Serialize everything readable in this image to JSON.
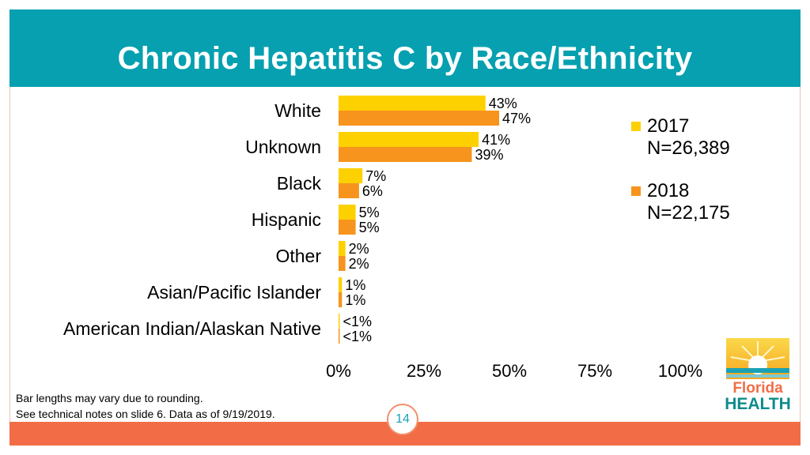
{
  "header": {
    "title": "Chronic Hepatitis C by Race/Ethnicity"
  },
  "colors": {
    "teal": "#06a0b0",
    "series_2017": "#fdd100",
    "series_2018": "#f7941d",
    "footer": "#f26d45"
  },
  "chart_data": {
    "type": "bar",
    "orientation": "horizontal",
    "categories": [
      "White",
      "Unknown",
      "Black",
      "Hispanic",
      "Other",
      "Asian/Pacific Islander",
      "American Indian/Alaskan Native"
    ],
    "series": [
      {
        "name": "2017",
        "n_label": "N=26,389",
        "values": [
          43,
          41,
          7,
          5,
          2,
          1,
          0.3
        ],
        "labels": [
          "43%",
          "41%",
          "7%",
          "5%",
          "2%",
          "1%",
          "<1%"
        ]
      },
      {
        "name": "2018",
        "n_label": "N=22,175",
        "values": [
          47,
          39,
          6,
          5,
          2,
          1,
          0.3
        ],
        "labels": [
          "47%",
          "39%",
          "6%",
          "5%",
          "2%",
          "1%",
          "<1%"
        ]
      }
    ],
    "xticks": [
      0,
      25,
      50,
      75,
      100
    ],
    "xtick_labels": [
      "0%",
      "25%",
      "50%",
      "75%",
      "100%"
    ],
    "xlim": [
      0,
      100
    ],
    "legend_position": "right",
    "grid": false
  },
  "footnotes": {
    "line1": "Bar lengths may vary due to rounding.",
    "line2": "See technical notes on slide 6. Data as of 9/19/2019."
  },
  "page_number": "14",
  "logo": {
    "line1": "Florida",
    "line2": "HEALTH"
  }
}
